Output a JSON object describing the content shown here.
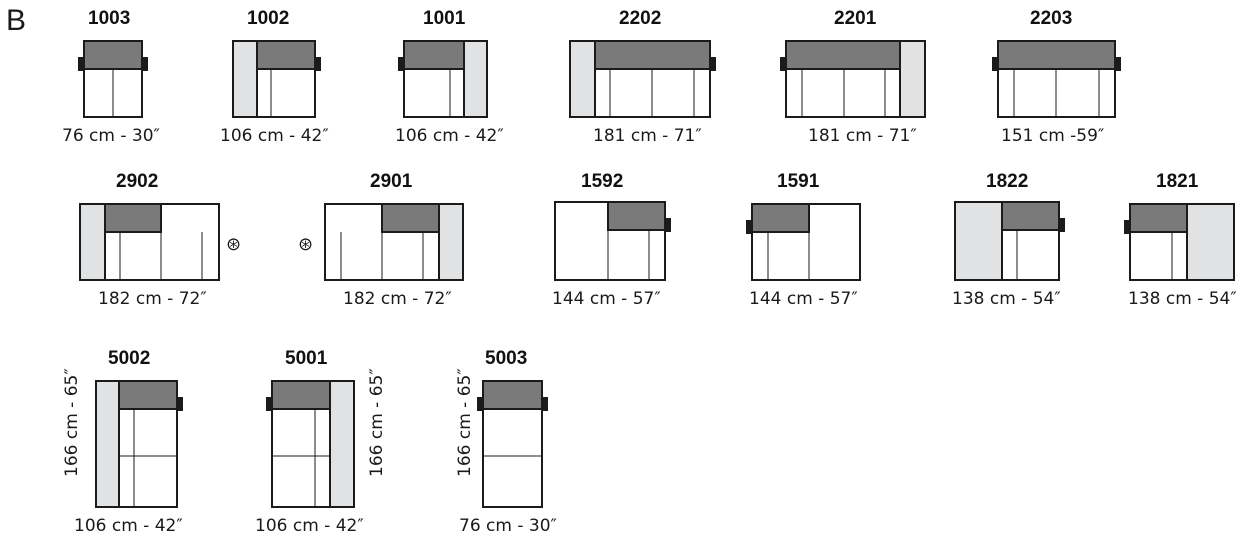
{
  "section_label": "B",
  "colors": {
    "outline": "#1b1b1b",
    "back": "#7a7a7a",
    "arm": "#e0e2e4",
    "seat": "#ffffff"
  },
  "modules": [
    {
      "id": "1003",
      "code": "1003",
      "width_label": "76 cm - 30″"
    },
    {
      "id": "1002",
      "code": "1002",
      "width_label": "106 cm - 42″"
    },
    {
      "id": "1001",
      "code": "1001",
      "width_label": "106 cm - 42″"
    },
    {
      "id": "2202",
      "code": "2202",
      "width_label": "181 cm - 71″"
    },
    {
      "id": "2201",
      "code": "2201",
      "width_label": "181 cm - 71″"
    },
    {
      "id": "2203",
      "code": "2203",
      "width_label": "151 cm -59″"
    },
    {
      "id": "2902",
      "code": "2902",
      "width_label": "182 cm - 72″"
    },
    {
      "id": "2901",
      "code": "2901",
      "width_label": "182 cm - 72″"
    },
    {
      "id": "1592",
      "code": "1592",
      "width_label": "144 cm - 57″"
    },
    {
      "id": "1591",
      "code": "1591",
      "width_label": "144 cm - 57″"
    },
    {
      "id": "1822",
      "code": "1822",
      "width_label": "138 cm - 54″"
    },
    {
      "id": "1821",
      "code": "1821",
      "width_label": "138 cm - 54″"
    },
    {
      "id": "5002",
      "code": "5002",
      "width_label": "106 cm - 42″",
      "depth_label": "166 cm - 65″"
    },
    {
      "id": "5001",
      "code": "5001",
      "width_label": "106 cm - 42″",
      "depth_label": "166 cm - 65″"
    },
    {
      "id": "5003",
      "code": "5003",
      "width_label": "76 cm - 30″",
      "depth_label": "166 cm - 65″"
    }
  ],
  "connector_symbol": "⊛"
}
